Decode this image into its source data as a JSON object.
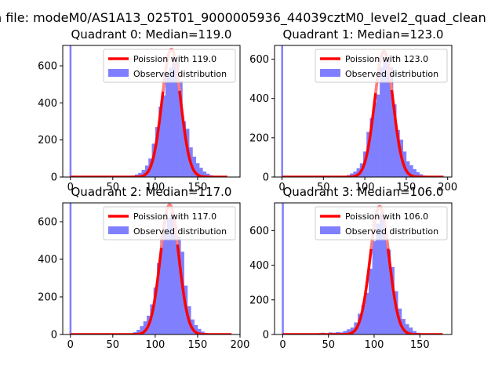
{
  "suptitle": "n file: modeM0/AS1A13_025T01_9000005936_44039cztM0_level2_quad_clean",
  "legend_labels": {
    "observed": "Observed distribution"
  },
  "colors": {
    "hist": "#8080ff",
    "poisson": "#ff0000",
    "poisson_peak": "#ff7f7f"
  },
  "chart_data": [
    {
      "type": "bar",
      "title": "Quadrant 0: Median=119.0",
      "legend_placement": "top-right",
      "median": 119.0,
      "poisson_label": "Poission with 119.0",
      "xlim": [
        -9,
        200
      ],
      "ylim": [
        0,
        710
      ],
      "xticks": [
        0,
        50,
        100,
        150
      ],
      "yticks": [
        0,
        200,
        400,
        600
      ],
      "poisson_x_range": [
        0,
        185
      ],
      "poisson_peak": 690,
      "zero_bin": 710,
      "bin_width": 4,
      "series": [
        {
          "name": "Observed distribution",
          "bin_starts": [
            68,
            72,
            76,
            80,
            84,
            88,
            92,
            96,
            100,
            104,
            108,
            112,
            116,
            120,
            124,
            128,
            132,
            136,
            140,
            144,
            148,
            152,
            156,
            160,
            164,
            168,
            172,
            176
          ],
          "values": [
            4,
            8,
            14,
            22,
            38,
            62,
            100,
            180,
            270,
            380,
            440,
            560,
            590,
            650,
            620,
            520,
            300,
            260,
            160,
            110,
            75,
            50,
            30,
            18,
            10,
            6,
            3,
            2
          ]
        }
      ]
    },
    {
      "type": "bar",
      "title": "Quadrant 1: Median=123.0",
      "legend_placement": "top-right",
      "median": 123.0,
      "poisson_label": "Poission with 123.0",
      "xlim": [
        -9,
        205
      ],
      "ylim": [
        0,
        670
      ],
      "xticks": [
        0,
        50,
        100,
        150,
        200
      ],
      "yticks": [
        0,
        200,
        400,
        600
      ],
      "poisson_x_range": [
        0,
        195
      ],
      "poisson_peak": 640,
      "zero_bin": 670,
      "bin_width": 4,
      "series": [
        {
          "name": "Observed distribution",
          "bin_starts": [
            74,
            78,
            82,
            86,
            90,
            94,
            98,
            102,
            106,
            110,
            114,
            118,
            122,
            126,
            130,
            134,
            138,
            142,
            146,
            150,
            154,
            158,
            162,
            166,
            170,
            174,
            178,
            182,
            186
          ],
          "values": [
            6,
            10,
            18,
            28,
            45,
            70,
            130,
            230,
            300,
            380,
            420,
            560,
            600,
            610,
            560,
            370,
            240,
            190,
            130,
            80,
            60,
            40,
            25,
            14,
            8,
            5,
            3,
            2,
            1
          ]
        }
      ]
    },
    {
      "type": "bar",
      "title": "Quadrant 2: Median=117.0",
      "legend_placement": "top-right",
      "median": 117.0,
      "poisson_label": "Poission with 117.0",
      "xlim": [
        -9,
        200
      ],
      "ylim": [
        0,
        700
      ],
      "xticks": [
        0,
        50,
        100,
        150,
        200
      ],
      "yticks": [
        0,
        200,
        400,
        600
      ],
      "poisson_x_range": [
        0,
        190
      ],
      "poisson_peak": 690,
      "zero_bin": 700,
      "bin_width": 4,
      "series": [
        {
          "name": "Observed distribution",
          "bin_starts": [
            70,
            74,
            78,
            82,
            86,
            90,
            94,
            98,
            102,
            106,
            110,
            114,
            118,
            122,
            126,
            130,
            134,
            138,
            142,
            146,
            150,
            154,
            158,
            162,
            166,
            170
          ],
          "values": [
            5,
            12,
            25,
            45,
            70,
            100,
            160,
            250,
            380,
            520,
            560,
            620,
            650,
            580,
            520,
            440,
            260,
            150,
            80,
            50,
            30,
            15,
            8,
            4,
            2,
            1
          ]
        }
      ]
    },
    {
      "type": "bar",
      "title": "Quadrant 3: Median=106.0",
      "legend_placement": "top-right",
      "median": 106.0,
      "poisson_label": "Poission with 106.0",
      "xlim": [
        -9,
        185
      ],
      "ylim": [
        0,
        760
      ],
      "xticks": [
        0,
        50,
        100,
        150
      ],
      "yticks": [
        0,
        200,
        400,
        600
      ],
      "poisson_x_range": [
        0,
        175
      ],
      "poisson_peak": 740,
      "zero_bin": 760,
      "bin_width": 4,
      "series": [
        {
          "name": "Observed distribution",
          "bin_starts": [
            30,
            34,
            38,
            42,
            46,
            50,
            54,
            58,
            62,
            66,
            70,
            74,
            78,
            82,
            86,
            90,
            94,
            98,
            102,
            106,
            110,
            114,
            118,
            122,
            126,
            130,
            134,
            138,
            142,
            146,
            150,
            154
          ],
          "values": [
            6,
            4,
            8,
            10,
            6,
            12,
            10,
            14,
            12,
            20,
            30,
            40,
            70,
            120,
            170,
            240,
            380,
            540,
            640,
            700,
            610,
            490,
            390,
            250,
            150,
            90,
            60,
            40,
            20,
            10,
            5,
            2
          ]
        }
      ]
    }
  ]
}
